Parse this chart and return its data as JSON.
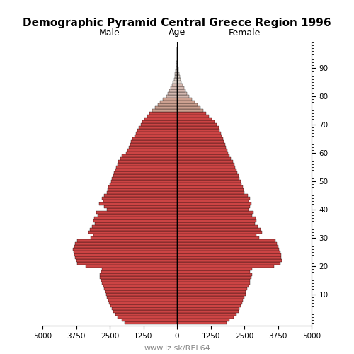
{
  "title": "Demographic Pyramid Central Greece Region 1996",
  "male_label": "Male",
  "female_label": "Female",
  "age_label": "Age",
  "footer": "www.iz.sk/REL64",
  "xlim": 5000,
  "ages": [
    0,
    1,
    2,
    3,
    4,
    5,
    6,
    7,
    8,
    9,
    10,
    11,
    12,
    13,
    14,
    15,
    16,
    17,
    18,
    19,
    20,
    21,
    22,
    23,
    24,
    25,
    26,
    27,
    28,
    29,
    30,
    31,
    32,
    33,
    34,
    35,
    36,
    37,
    38,
    39,
    40,
    41,
    42,
    43,
    44,
    45,
    46,
    47,
    48,
    49,
    50,
    51,
    52,
    53,
    54,
    55,
    56,
    57,
    58,
    59,
    60,
    61,
    62,
    63,
    64,
    65,
    66,
    67,
    68,
    69,
    70,
    71,
    72,
    73,
    74,
    75,
    76,
    77,
    78,
    79,
    80,
    81,
    82,
    83,
    84,
    85,
    86,
    87,
    88,
    89,
    90,
    91,
    92,
    93,
    94,
    95,
    96,
    97
  ],
  "male": [
    1950,
    2050,
    2200,
    2300,
    2380,
    2420,
    2480,
    2530,
    2560,
    2600,
    2640,
    2660,
    2700,
    2750,
    2800,
    2820,
    2860,
    2880,
    2820,
    2780,
    3400,
    3700,
    3750,
    3800,
    3820,
    3850,
    3880,
    3820,
    3780,
    3700,
    3200,
    3100,
    3300,
    3250,
    3150,
    3050,
    3100,
    3080,
    2950,
    3000,
    2600,
    2700,
    2900,
    2750,
    2800,
    2720,
    2600,
    2580,
    2540,
    2500,
    2460,
    2420,
    2380,
    2340,
    2300,
    2260,
    2220,
    2180,
    2100,
    2040,
    1900,
    1850,
    1800,
    1750,
    1700,
    1650,
    1580,
    1530,
    1480,
    1430,
    1350,
    1280,
    1200,
    1100,
    1020,
    920,
    820,
    720,
    620,
    520,
    400,
    340,
    280,
    230,
    185,
    150,
    115,
    88,
    66,
    50,
    36,
    26,
    16,
    10,
    6,
    3,
    1,
    0
  ],
  "female": [
    1850,
    1950,
    2100,
    2200,
    2280,
    2320,
    2380,
    2430,
    2460,
    2500,
    2540,
    2560,
    2600,
    2650,
    2700,
    2720,
    2760,
    2780,
    2720,
    2780,
    3600,
    3850,
    3900,
    3880,
    3860,
    3840,
    3800,
    3750,
    3700,
    3650,
    3050,
    2950,
    3150,
    3100,
    3000,
    2900,
    2950,
    2930,
    2800,
    2850,
    2650,
    2700,
    2750,
    2650,
    2700,
    2620,
    2500,
    2480,
    2440,
    2400,
    2360,
    2320,
    2280,
    2240,
    2200,
    2160,
    2120,
    2080,
    2000,
    1950,
    1900,
    1860,
    1820,
    1780,
    1740,
    1700,
    1650,
    1620,
    1590,
    1560,
    1480,
    1400,
    1300,
    1180,
    1080,
    970,
    870,
    760,
    660,
    560,
    450,
    380,
    310,
    255,
    210,
    170,
    130,
    100,
    75,
    56,
    40,
    28,
    18,
    12,
    7,
    4,
    2,
    0
  ]
}
